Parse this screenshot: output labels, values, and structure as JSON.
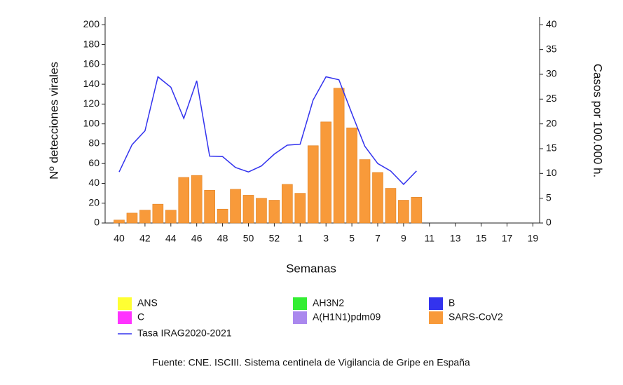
{
  "chart_data": {
    "type": "bar",
    "xlabel": "Semanas",
    "ylabel": "Nº detecciones virales",
    "y2label": "Casos por 100.000 h.",
    "footer": "Fuente: CNE. ISCIII. Sistema centinela de Vigilancia de Gripe en España",
    "categories": [
      "40",
      null,
      "42",
      null,
      "44",
      null,
      "46",
      null,
      "48",
      null,
      "50",
      null,
      "52",
      null,
      "1",
      null,
      "3",
      null,
      "5",
      null,
      "7",
      null,
      "9",
      null,
      "11",
      null,
      "13",
      null,
      "15",
      null,
      "17",
      null,
      "19"
    ],
    "ylim": [
      0,
      208
    ],
    "yticks": [
      0,
      20,
      40,
      60,
      80,
      100,
      120,
      140,
      160,
      180,
      200
    ],
    "y2lim": [
      0,
      41.6
    ],
    "y2ticks": [
      0,
      5,
      10,
      15,
      20,
      25,
      30,
      35,
      40
    ],
    "series": [
      {
        "name": "ANS",
        "color": "#ffff33",
        "values": [
          null,
          null,
          null,
          null,
          null,
          null,
          null,
          null,
          null,
          null,
          null,
          null,
          null,
          null,
          null,
          null,
          null,
          null,
          null,
          null,
          null,
          null,
          null,
          null,
          null,
          null,
          null,
          null,
          null,
          null,
          null,
          null,
          null
        ]
      },
      {
        "name": "AH3N2",
        "color": "#33ee33",
        "values": [
          null,
          null,
          null,
          null,
          null,
          null,
          null,
          null,
          null,
          null,
          null,
          null,
          null,
          null,
          null,
          null,
          null,
          null,
          null,
          null,
          null,
          null,
          null,
          null,
          null,
          null,
          null,
          null,
          null,
          null,
          null,
          null,
          null
        ]
      },
      {
        "name": "B",
        "color": "#3333ee",
        "values": [
          null,
          null,
          null,
          null,
          null,
          null,
          null,
          null,
          null,
          null,
          null,
          null,
          null,
          null,
          null,
          null,
          null,
          null,
          null,
          null,
          null,
          null,
          null,
          null,
          null,
          null,
          null,
          null,
          null,
          null,
          null,
          null,
          null
        ]
      },
      {
        "name": "C",
        "color": "#ff33ff",
        "values": [
          null,
          null,
          null,
          null,
          null,
          null,
          null,
          null,
          null,
          null,
          null,
          null,
          null,
          null,
          null,
          null,
          null,
          null,
          null,
          null,
          null,
          null,
          null,
          null,
          null,
          null,
          null,
          null,
          null,
          null,
          null,
          null,
          null
        ]
      },
      {
        "name": "A(H1N1)pdm09",
        "color": "#aa88ee",
        "values": [
          null,
          null,
          null,
          null,
          null,
          null,
          null,
          null,
          null,
          null,
          null,
          null,
          null,
          null,
          null,
          null,
          null,
          null,
          null,
          null,
          null,
          null,
          null,
          null,
          null,
          null,
          null,
          null,
          null,
          null,
          null,
          null,
          null
        ]
      },
      {
        "name": "SARS-CoV2",
        "color": "#f89a3a",
        "values": [
          3,
          10,
          13,
          19,
          13,
          46,
          48,
          33,
          14,
          34,
          28,
          25,
          23,
          39,
          30,
          78,
          102,
          136,
          96,
          64,
          51,
          35,
          23,
          26,
          null,
          null,
          null,
          null,
          null,
          null,
          null,
          null,
          null
        ]
      },
      {
        "name": "Tasa IRAG2020-2021",
        "color": "#3333ee",
        "type": "line",
        "axis": "y2",
        "values": [
          10.3,
          15.8,
          18.6,
          29.5,
          27.4,
          21.1,
          28.7,
          13.5,
          13.4,
          11.2,
          10.3,
          11.5,
          13.9,
          15.7,
          15.9,
          24.8,
          29.5,
          28.9,
          22.1,
          15.5,
          12,
          10.5,
          7.8,
          10.5,
          null,
          null,
          null,
          null,
          null,
          null,
          null,
          null,
          null
        ]
      }
    ]
  }
}
